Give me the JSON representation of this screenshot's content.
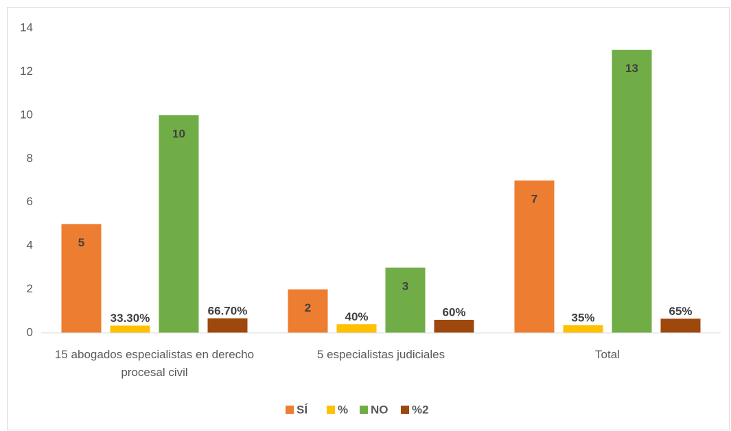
{
  "chart_data": {
    "type": "bar",
    "categories": [
      "15 abogados especialistas en derecho procesal civil",
      "5 especialistas judiciales",
      "Total"
    ],
    "series": [
      {
        "name": "SÍ",
        "color": "#ed7d31",
        "values": [
          5,
          2,
          7
        ]
      },
      {
        "name": "%",
        "color": "#ffc000",
        "values": [
          0.333,
          0.4,
          0.35
        ],
        "value_labels": [
          "33.30%",
          "40%",
          "35%"
        ]
      },
      {
        "name": "NO",
        "color": "#70ad47",
        "values": [
          10,
          3,
          13
        ]
      },
      {
        "name": "%2",
        "color": "#9e480e",
        "values": [
          0.667,
          0.6,
          0.65
        ],
        "value_labels": [
          "66.70%",
          "60%",
          "65%"
        ]
      }
    ],
    "ylim": [
      0,
      14
    ],
    "yticks": [
      0,
      2,
      4,
      6,
      8,
      10,
      12,
      14
    ],
    "grid": false,
    "legend": "bottom"
  }
}
